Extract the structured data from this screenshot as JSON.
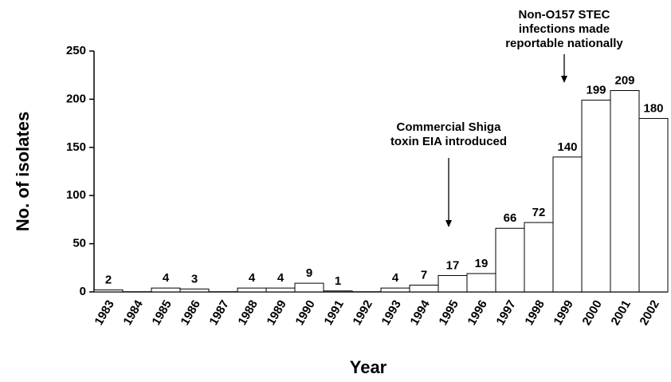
{
  "chart_data": {
    "type": "bar",
    "xlabel": "Year",
    "ylabel": "No. of isolates",
    "categories": [
      "1983",
      "1984",
      "1985",
      "1986",
      "1987",
      "1988",
      "1989",
      "1990",
      "1991",
      "1992",
      "1993",
      "1994",
      "1995",
      "1996",
      "1997",
      "1998",
      "1999",
      "2000",
      "2001",
      "2002"
    ],
    "values": [
      2,
      0,
      4,
      3,
      0,
      4,
      4,
      9,
      1,
      0,
      4,
      7,
      17,
      19,
      66,
      72,
      140,
      199,
      209,
      180
    ],
    "value_labels": [
      "2",
      null,
      "4",
      "3",
      null,
      "4",
      "4",
      "9",
      "1",
      null,
      "4",
      "7",
      "17",
      "19",
      "66",
      "72",
      "140",
      "199",
      "209",
      "180"
    ],
    "color": "#ffffff",
    "ylim": [
      0,
      250
    ],
    "yticks": [
      0,
      50,
      100,
      150,
      200,
      250
    ],
    "annotations": [
      {
        "lines": [
          "Commercial Shiga",
          "toxin EIA introduced"
        ]
      },
      {
        "lines": [
          "Non-O157 STEC",
          "infections made",
          "reportable nationally"
        ]
      }
    ]
  }
}
